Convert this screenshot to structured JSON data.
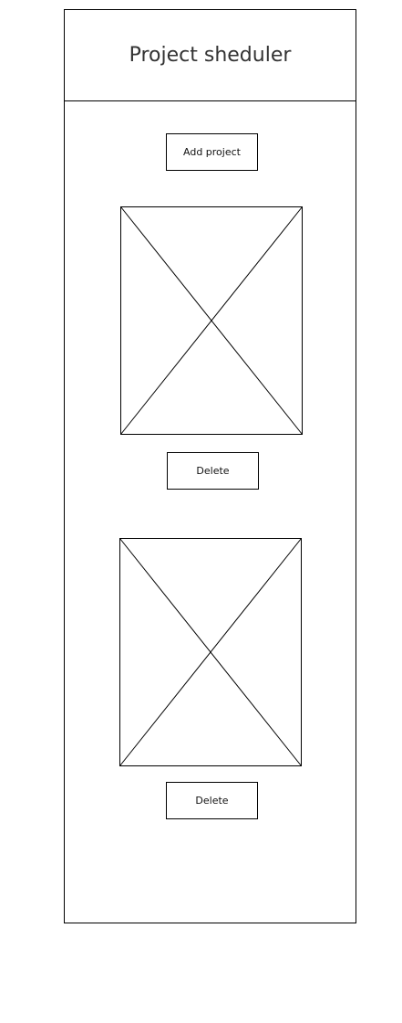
{
  "header": {
    "title": "Project sheduler"
  },
  "toolbar": {
    "add_label": "Add project"
  },
  "projects": [
    {
      "image_icon": "image-placeholder-icon",
      "delete_label": "Delete"
    },
    {
      "image_icon": "image-placeholder-icon",
      "delete_label": "Delete"
    }
  ]
}
